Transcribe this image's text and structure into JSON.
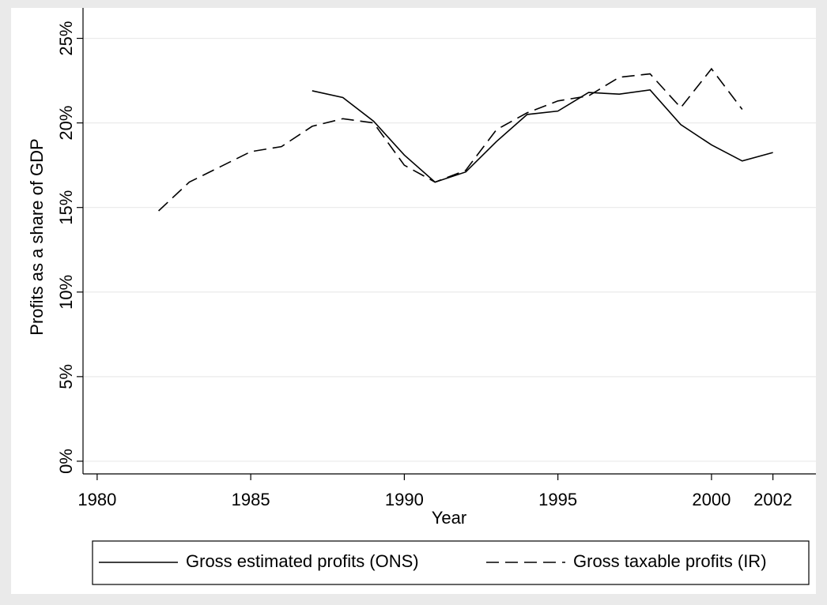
{
  "chart_data": {
    "type": "line",
    "x_label": "Year",
    "y_label": "Profits as a share of GDP",
    "x": [
      1982,
      1983,
      1984,
      1985,
      1986,
      1987,
      1988,
      1989,
      1990,
      1991,
      1992,
      1993,
      1994,
      1995,
      1996,
      1997,
      1998,
      1999,
      2000,
      2001,
      2002
    ],
    "series": [
      {
        "name": "Gross estimated profits (ONS)",
        "color": "#000000",
        "dash": "solid",
        "values": [
          null,
          null,
          null,
          null,
          null,
          21.9,
          21.5,
          20.1,
          18.1,
          16.5,
          17.1,
          18.9,
          20.5,
          20.7,
          21.8,
          21.7,
          21.95,
          19.9,
          18.7,
          17.75,
          18.25
        ]
      },
      {
        "name": "Gross taxable profits (IR)",
        "color": "#000000",
        "dash": "dashed",
        "values": [
          14.8,
          16.5,
          17.4,
          18.3,
          18.6,
          19.8,
          20.25,
          20.0,
          17.5,
          16.5,
          17.2,
          19.6,
          20.6,
          21.3,
          21.6,
          22.7,
          22.9,
          20.9,
          23.2,
          20.8,
          null
        ]
      }
    ],
    "xlim": [
      1979.54,
      2003.4
    ],
    "ylim": [
      -0.75,
      26.8
    ],
    "xticks": [
      1980,
      1985,
      1990,
      1995,
      2000,
      2002
    ],
    "yticks": [
      {
        "value": 0,
        "label": "0%"
      },
      {
        "value": 5,
        "label": "5%"
      },
      {
        "value": 10,
        "label": "10%"
      },
      {
        "value": 15,
        "label": "15%"
      },
      {
        "value": 20,
        "label": "20%"
      },
      {
        "value": 25,
        "label": "25%"
      }
    ],
    "grid": true,
    "legend": "bottom"
  }
}
